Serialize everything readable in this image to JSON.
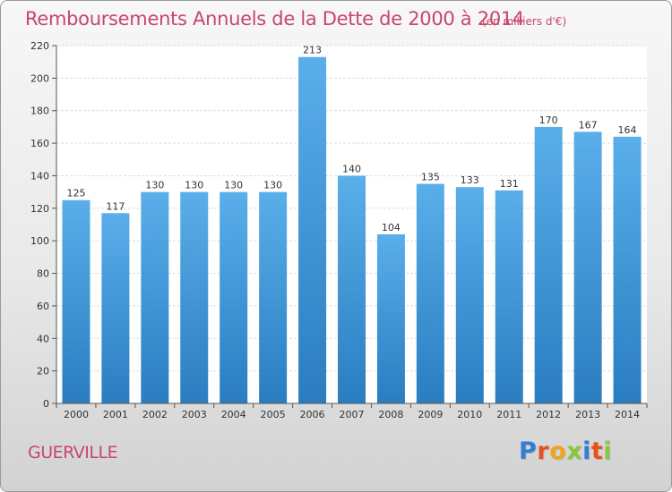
{
  "chart_data": {
    "type": "bar",
    "title": "Remboursements Annuels de la Dette de 2000 à 2014",
    "subtitle": "(en milliers d'€)",
    "categories": [
      "2000",
      "2001",
      "2002",
      "2003",
      "2004",
      "2005",
      "2006",
      "2007",
      "2008",
      "2009",
      "2010",
      "2011",
      "2012",
      "2013",
      "2014"
    ],
    "values": [
      125,
      117,
      130,
      130,
      130,
      130,
      213,
      140,
      104,
      135,
      133,
      131,
      170,
      167,
      164
    ],
    "ylim": [
      0,
      220
    ],
    "yticks": [
      0,
      20,
      40,
      60,
      80,
      100,
      120,
      140,
      160,
      180,
      200,
      220
    ],
    "grid": true,
    "bar_color_top": "#5aaeea",
    "bar_color_bottom": "#2a7dc0"
  },
  "footer": {
    "town": "GUERVILLE",
    "logo_letters": [
      "P",
      "r",
      "o",
      "x",
      "i",
      "t",
      "i"
    ],
    "logo_colors": [
      "#2f7fd3",
      "#e8501e",
      "#f2a516",
      "#8cc63f",
      "#2f7fd3",
      "#e8501e",
      "#8cc63f"
    ]
  }
}
